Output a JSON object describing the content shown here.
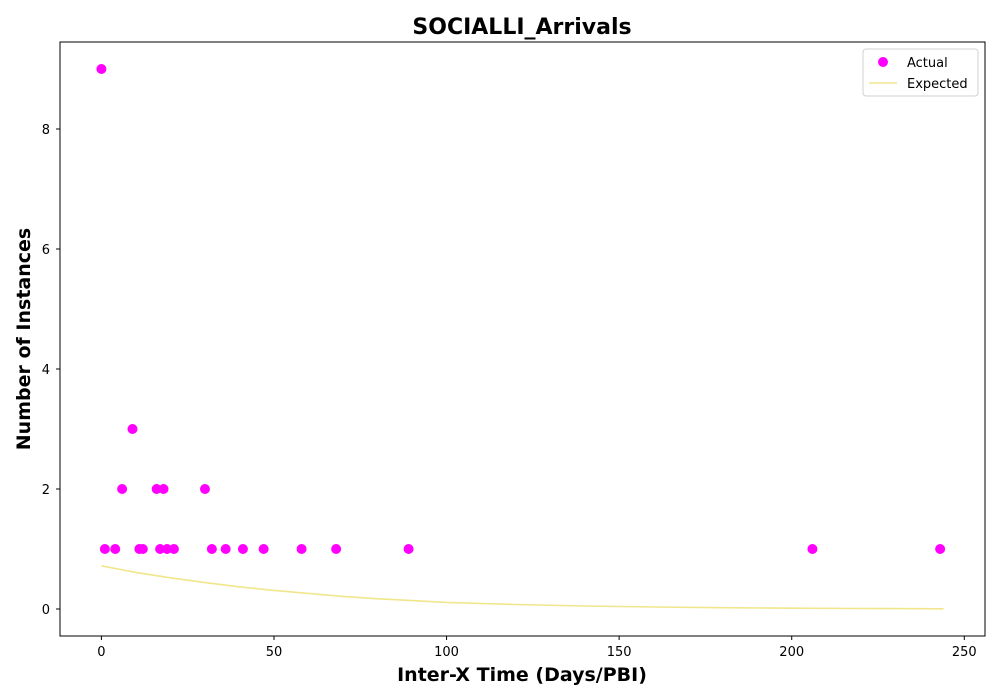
{
  "chart_data": {
    "type": "scatter",
    "title": "SOCIALLI_Arrivals",
    "xlabel": "Inter-X Time (Days/PBI)",
    "ylabel": "Number of Instances",
    "xlim": [
      -12,
      256
    ],
    "ylim": [
      -0.45,
      9.45
    ],
    "x_ticks": [
      0,
      50,
      100,
      150,
      200,
      250
    ],
    "y_ticks": [
      0,
      2,
      4,
      6,
      8
    ],
    "grid": false,
    "legend_position": "top-right",
    "series": [
      {
        "name": "Actual",
        "kind": "scatter",
        "color": "#ff00ff",
        "points": [
          [
            0,
            9
          ],
          [
            1,
            1
          ],
          [
            4,
            1
          ],
          [
            6,
            2
          ],
          [
            9,
            3
          ],
          [
            11,
            1
          ],
          [
            12,
            1
          ],
          [
            16,
            2
          ],
          [
            17,
            1
          ],
          [
            18,
            2
          ],
          [
            19,
            1
          ],
          [
            21,
            1
          ],
          [
            30,
            2
          ],
          [
            32,
            1
          ],
          [
            36,
            1
          ],
          [
            41,
            1
          ],
          [
            47,
            1
          ],
          [
            58,
            1
          ],
          [
            68,
            1
          ],
          [
            89,
            1
          ],
          [
            206,
            1
          ],
          [
            243,
            1
          ]
        ]
      },
      {
        "name": "Expected",
        "kind": "line",
        "color": "#f0e68c",
        "points": [
          [
            0,
            0.72
          ],
          [
            10,
            0.61
          ],
          [
            20,
            0.52
          ],
          [
            30,
            0.44
          ],
          [
            40,
            0.37
          ],
          [
            50,
            0.31
          ],
          [
            60,
            0.26
          ],
          [
            70,
            0.21
          ],
          [
            80,
            0.17
          ],
          [
            90,
            0.14
          ],
          [
            100,
            0.11
          ],
          [
            120,
            0.075
          ],
          [
            140,
            0.05
          ],
          [
            160,
            0.033
          ],
          [
            180,
            0.022
          ],
          [
            200,
            0.014
          ],
          [
            220,
            0.008
          ],
          [
            244,
            0.004
          ]
        ]
      }
    ]
  }
}
